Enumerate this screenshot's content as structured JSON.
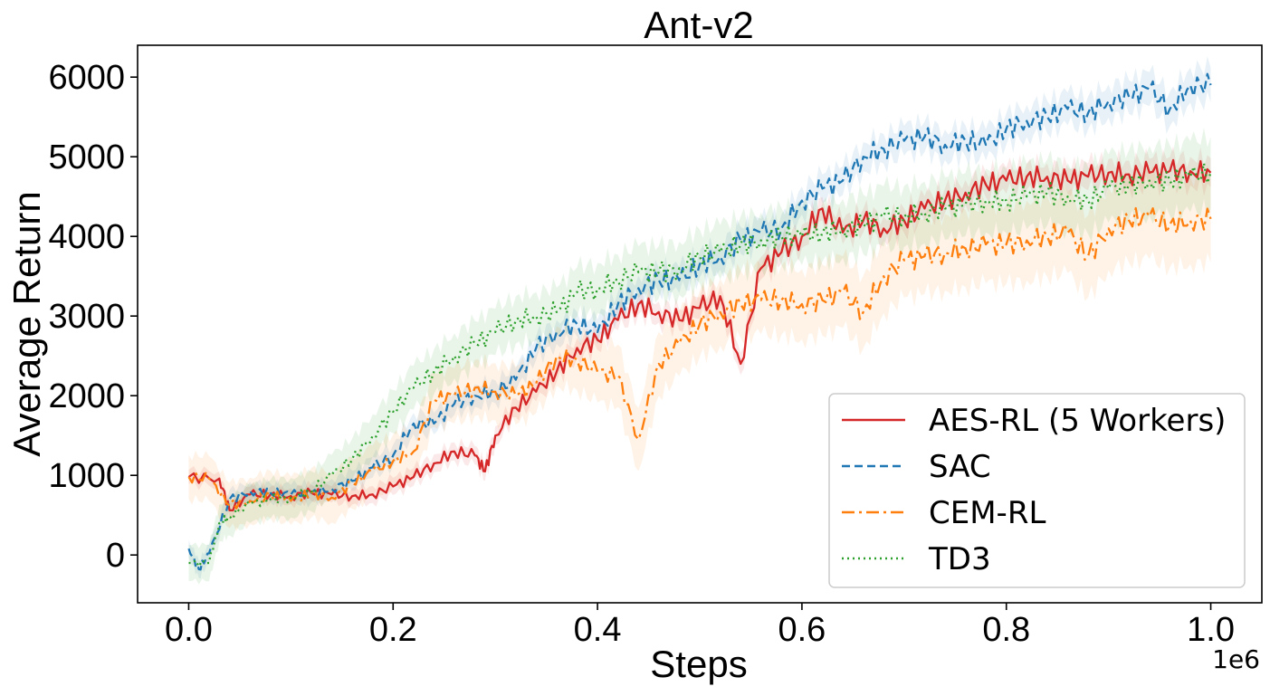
{
  "chart_data": {
    "type": "line",
    "title": "Ant-v2",
    "xlabel": "Steps",
    "ylabel": "Average Return",
    "x_offset_label": "1e6",
    "xlim": [
      -0.05,
      1.05
    ],
    "ylim": [
      -600,
      6400
    ],
    "xticks": [
      0.0,
      0.2,
      0.4,
      0.6,
      0.8,
      1.0
    ],
    "xtick_labels": [
      "0.0",
      "0.2",
      "0.4",
      "0.6",
      "0.8",
      "1.0"
    ],
    "yticks": [
      0,
      1000,
      2000,
      3000,
      4000,
      5000,
      6000
    ],
    "ytick_labels": [
      "0",
      "1000",
      "2000",
      "3000",
      "4000",
      "5000",
      "6000"
    ],
    "grid": false,
    "legend_position": "lower-right",
    "series": [
      {
        "name": "AES-RL (5 Workers)",
        "color": "#d62728",
        "dash": "solid",
        "spread": 180,
        "points": [
          [
            0.0,
            980
          ],
          [
            0.03,
            960
          ],
          [
            0.04,
            560
          ],
          [
            0.06,
            760
          ],
          [
            0.08,
            760
          ],
          [
            0.1,
            740
          ],
          [
            0.12,
            780
          ],
          [
            0.14,
            760
          ],
          [
            0.16,
            740
          ],
          [
            0.18,
            760
          ],
          [
            0.2,
            860
          ],
          [
            0.22,
            980
          ],
          [
            0.24,
            1150
          ],
          [
            0.26,
            1300
          ],
          [
            0.28,
            1250
          ],
          [
            0.29,
            1050
          ],
          [
            0.3,
            1500
          ],
          [
            0.32,
            1850
          ],
          [
            0.34,
            2050
          ],
          [
            0.36,
            2300
          ],
          [
            0.38,
            2600
          ],
          [
            0.4,
            2700
          ],
          [
            0.42,
            2950
          ],
          [
            0.44,
            3150
          ],
          [
            0.46,
            3050
          ],
          [
            0.48,
            2950
          ],
          [
            0.5,
            3100
          ],
          [
            0.52,
            3250
          ],
          [
            0.54,
            2400
          ],
          [
            0.56,
            3600
          ],
          [
            0.58,
            3800
          ],
          [
            0.6,
            4000
          ],
          [
            0.62,
            4350
          ],
          [
            0.64,
            4050
          ],
          [
            0.66,
            4200
          ],
          [
            0.68,
            4100
          ],
          [
            0.7,
            4200
          ],
          [
            0.72,
            4350
          ],
          [
            0.74,
            4450
          ],
          [
            0.76,
            4550
          ],
          [
            0.78,
            4650
          ],
          [
            0.8,
            4700
          ],
          [
            0.82,
            4750
          ],
          [
            0.84,
            4750
          ],
          [
            0.86,
            4700
          ],
          [
            0.88,
            4750
          ],
          [
            0.9,
            4800
          ],
          [
            0.92,
            4780
          ],
          [
            0.94,
            4800
          ],
          [
            0.96,
            4820
          ],
          [
            0.98,
            4820
          ],
          [
            1.0,
            4800
          ]
        ]
      },
      {
        "name": "SAC",
        "color": "#1f77b4",
        "dash": "9,5",
        "spread": 220,
        "points": [
          [
            0.0,
            80
          ],
          [
            0.01,
            -180
          ],
          [
            0.02,
            20
          ],
          [
            0.04,
            700
          ],
          [
            0.06,
            800
          ],
          [
            0.08,
            780
          ],
          [
            0.1,
            760
          ],
          [
            0.12,
            780
          ],
          [
            0.14,
            830
          ],
          [
            0.16,
            930
          ],
          [
            0.18,
            1100
          ],
          [
            0.2,
            1250
          ],
          [
            0.22,
            1650
          ],
          [
            0.24,
            1650
          ],
          [
            0.26,
            1900
          ],
          [
            0.28,
            2000
          ],
          [
            0.3,
            2050
          ],
          [
            0.32,
            2200
          ],
          [
            0.34,
            2600
          ],
          [
            0.36,
            2800
          ],
          [
            0.38,
            2900
          ],
          [
            0.4,
            2800
          ],
          [
            0.42,
            3150
          ],
          [
            0.44,
            3350
          ],
          [
            0.46,
            3450
          ],
          [
            0.48,
            3450
          ],
          [
            0.5,
            3650
          ],
          [
            0.52,
            3750
          ],
          [
            0.54,
            3950
          ],
          [
            0.56,
            4050
          ],
          [
            0.58,
            4100
          ],
          [
            0.6,
            4450
          ],
          [
            0.62,
            4600
          ],
          [
            0.64,
            4700
          ],
          [
            0.66,
            5000
          ],
          [
            0.68,
            5100
          ],
          [
            0.7,
            5200
          ],
          [
            0.72,
            5250
          ],
          [
            0.74,
            5150
          ],
          [
            0.76,
            5200
          ],
          [
            0.78,
            5150
          ],
          [
            0.8,
            5350
          ],
          [
            0.82,
            5450
          ],
          [
            0.84,
            5500
          ],
          [
            0.86,
            5600
          ],
          [
            0.88,
            5550
          ],
          [
            0.9,
            5700
          ],
          [
            0.92,
            5750
          ],
          [
            0.94,
            5850
          ],
          [
            0.96,
            5600
          ],
          [
            0.98,
            5900
          ],
          [
            1.0,
            5900
          ]
        ]
      },
      {
        "name": "CEM-RL",
        "color": "#ff7f0e",
        "dash": "14,5,3,5",
        "spread": 550,
        "points": [
          [
            0.0,
            980
          ],
          [
            0.02,
            960
          ],
          [
            0.04,
            620
          ],
          [
            0.06,
            680
          ],
          [
            0.08,
            760
          ],
          [
            0.1,
            680
          ],
          [
            0.12,
            780
          ],
          [
            0.14,
            720
          ],
          [
            0.16,
            900
          ],
          [
            0.18,
            1050
          ],
          [
            0.2,
            1180
          ],
          [
            0.22,
            1300
          ],
          [
            0.24,
            1950
          ],
          [
            0.26,
            2000
          ],
          [
            0.28,
            2100
          ],
          [
            0.3,
            2050
          ],
          [
            0.32,
            2000
          ],
          [
            0.34,
            2150
          ],
          [
            0.36,
            2500
          ],
          [
            0.38,
            2450
          ],
          [
            0.4,
            2300
          ],
          [
            0.42,
            2250
          ],
          [
            0.44,
            1450
          ],
          [
            0.46,
            2400
          ],
          [
            0.48,
            2650
          ],
          [
            0.5,
            2900
          ],
          [
            0.52,
            3050
          ],
          [
            0.54,
            3150
          ],
          [
            0.56,
            3200
          ],
          [
            0.58,
            3200
          ],
          [
            0.6,
            3150
          ],
          [
            0.62,
            3200
          ],
          [
            0.64,
            3300
          ],
          [
            0.66,
            3050
          ],
          [
            0.68,
            3500
          ],
          [
            0.7,
            3700
          ],
          [
            0.72,
            3750
          ],
          [
            0.74,
            3800
          ],
          [
            0.76,
            3850
          ],
          [
            0.78,
            3900
          ],
          [
            0.8,
            3900
          ],
          [
            0.82,
            3950
          ],
          [
            0.84,
            4000
          ],
          [
            0.86,
            4050
          ],
          [
            0.88,
            3750
          ],
          [
            0.9,
            4100
          ],
          [
            0.92,
            4200
          ],
          [
            0.94,
            4250
          ],
          [
            0.96,
            4150
          ],
          [
            0.98,
            4200
          ],
          [
            1.0,
            4220
          ]
        ]
      },
      {
        "name": "TD3",
        "color": "#2ca02c",
        "dash": "2,4",
        "spread": 450,
        "points": [
          [
            0.0,
            -100
          ],
          [
            0.02,
            -100
          ],
          [
            0.03,
            400
          ],
          [
            0.04,
            480
          ],
          [
            0.06,
            640
          ],
          [
            0.08,
            700
          ],
          [
            0.1,
            720
          ],
          [
            0.12,
            800
          ],
          [
            0.14,
            1000
          ],
          [
            0.16,
            1200
          ],
          [
            0.18,
            1500
          ],
          [
            0.2,
            1800
          ],
          [
            0.22,
            2100
          ],
          [
            0.24,
            2300
          ],
          [
            0.26,
            2500
          ],
          [
            0.28,
            2650
          ],
          [
            0.3,
            2800
          ],
          [
            0.32,
            2950
          ],
          [
            0.34,
            3000
          ],
          [
            0.36,
            3050
          ],
          [
            0.38,
            3300
          ],
          [
            0.4,
            3350
          ],
          [
            0.42,
            3450
          ],
          [
            0.44,
            3550
          ],
          [
            0.46,
            3550
          ],
          [
            0.48,
            3600
          ],
          [
            0.5,
            3750
          ],
          [
            0.52,
            3800
          ],
          [
            0.54,
            3900
          ],
          [
            0.56,
            3950
          ],
          [
            0.58,
            4000
          ],
          [
            0.6,
            4000
          ],
          [
            0.62,
            4050
          ],
          [
            0.64,
            4100
          ],
          [
            0.66,
            4150
          ],
          [
            0.68,
            4250
          ],
          [
            0.7,
            4250
          ],
          [
            0.72,
            4300
          ],
          [
            0.74,
            4350
          ],
          [
            0.76,
            4400
          ],
          [
            0.78,
            4450
          ],
          [
            0.8,
            4450
          ],
          [
            0.82,
            4500
          ],
          [
            0.84,
            4550
          ],
          [
            0.86,
            4500
          ],
          [
            0.88,
            4450
          ],
          [
            0.9,
            4600
          ],
          [
            0.92,
            4650
          ],
          [
            0.94,
            4700
          ],
          [
            0.96,
            4700
          ],
          [
            0.98,
            4750
          ],
          [
            1.0,
            4800
          ]
        ]
      }
    ]
  }
}
